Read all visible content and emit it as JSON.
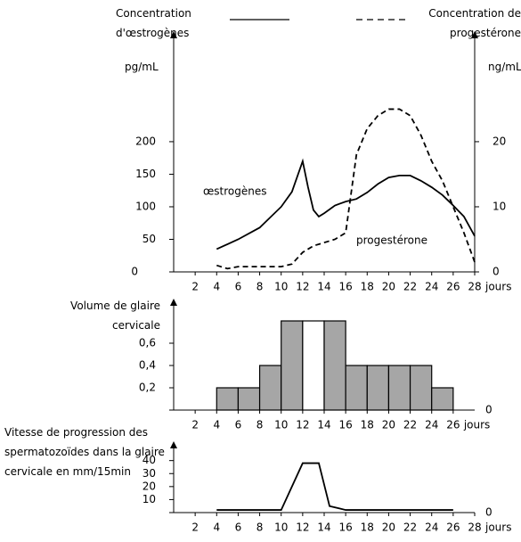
{
  "chart_data": [
    {
      "type": "line",
      "xlim": [
        0,
        28
      ],
      "xticks": [
        2,
        4,
        6,
        8,
        10,
        12,
        14,
        16,
        18,
        20,
        22,
        24,
        26,
        28
      ],
      "xlabel": "jours",
      "ylim": [
        0,
        356
      ],
      "yticks": [
        0,
        50,
        100,
        150,
        200
      ],
      "ylabel": "pg/mL",
      "y2lim": [
        0,
        35.6
      ],
      "y2ticks": [
        0,
        10,
        20
      ],
      "y2label": "ng/mL",
      "series": [
        {
          "name": "Concentration d'œstrogènes",
          "color": "#000000",
          "dash": false,
          "x": [
            4,
            6,
            8,
            10,
            11,
            12,
            12.5,
            13,
            13.5,
            14,
            15,
            16,
            17,
            18,
            19,
            20,
            21,
            22,
            23,
            24,
            25,
            26,
            27,
            28
          ],
          "values": [
            35,
            50,
            68,
            100,
            123,
            170,
            130,
            95,
            85,
            90,
            102,
            108,
            112,
            122,
            135,
            145,
            148,
            148,
            140,
            130,
            118,
            102,
            85,
            55
          ]
        },
        {
          "name": "Concentration de progestérone",
          "color": "#000000",
          "dash": true,
          "axis": "y2",
          "x": [
            4,
            5,
            6,
            8,
            10,
            11,
            12,
            13,
            14,
            15,
            16,
            16.5,
            17,
            18,
            19,
            20,
            21,
            22,
            23,
            24,
            25,
            26,
            27,
            28
          ],
          "values": [
            1,
            0.5,
            0.8,
            0.8,
            0.8,
            1.2,
            3,
            4,
            4.5,
            5,
            6,
            12,
            18,
            22,
            24,
            25,
            25,
            24,
            21,
            17,
            14,
            10,
            6,
            1.5
          ]
        }
      ],
      "annotations": [
        "œstrogènes",
        "progestérone"
      ]
    },
    {
      "type": "histogram",
      "xlim": [
        0,
        28
      ],
      "xticks": [
        2,
        4,
        6,
        8,
        10,
        12,
        14,
        16,
        18,
        20,
        22,
        24,
        26
      ],
      "xlabel": "jours",
      "ylim": [
        0,
        0.92
      ],
      "yticks": [
        0,
        {
          "value": 0.2,
          "label": "0,2"
        },
        {
          "value": 0.4,
          "label": "0,4"
        },
        {
          "value": 0.6,
          "label": "0,6"
        }
      ],
      "ylabel": "Volume de glaire cervicale",
      "bins": [
        4,
        6,
        8,
        10,
        12,
        14,
        16,
        18,
        20,
        22,
        24,
        26
      ],
      "values": [
        0.2,
        0.2,
        0.4,
        0.8,
        0.8,
        0.8,
        0.4,
        0.4,
        0.4,
        0.4,
        0.2
      ],
      "colors": [
        "#a6a6a6",
        "#a6a6a6",
        "#a6a6a6",
        "#a6a6a6",
        "#ffffff",
        "#a6a6a6",
        "#a6a6a6",
        "#a6a6a6",
        "#a6a6a6",
        "#a6a6a6",
        "#a6a6a6"
      ]
    },
    {
      "type": "line",
      "xlim": [
        0,
        28
      ],
      "xticks": [
        2,
        4,
        6,
        8,
        10,
        12,
        14,
        16,
        18,
        20,
        22,
        24,
        26,
        28
      ],
      "xlabel": "jours",
      "ylim": [
        0,
        48
      ],
      "yticks": [
        0,
        10,
        20,
        30,
        40
      ],
      "ylabel": "Vitesse de progression des spermatozoïdes dans la glaire cervicale en mm/15min",
      "series": [
        {
          "color": "#000000",
          "dash": false,
          "x": [
            4,
            10,
            12,
            13.5,
            14.5,
            16,
            26
          ],
          "values": [
            2,
            2,
            38,
            38,
            5,
            2,
            2
          ]
        }
      ]
    }
  ]
}
